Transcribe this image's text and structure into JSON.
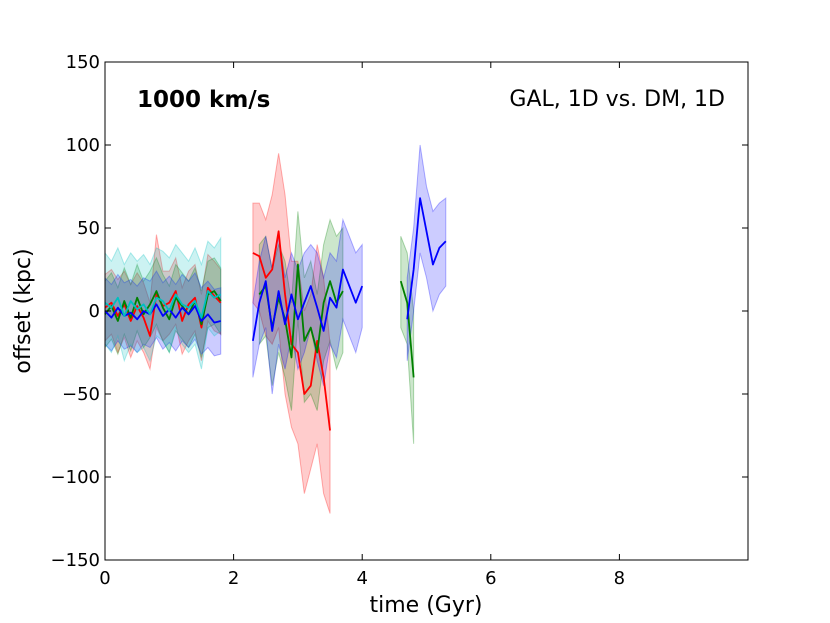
{
  "chart_data": {
    "type": "line",
    "title": "",
    "xlabel": "time (Gyr)",
    "ylabel": "offset (kpc)",
    "xlim": [
      0,
      10
    ],
    "ylim": [
      -150,
      150
    ],
    "x_ticks": [
      0,
      2,
      4,
      6,
      8
    ],
    "x_tick_labels": [
      "0",
      "2",
      "4",
      "6",
      "8"
    ],
    "y_ticks": [
      -150,
      -100,
      -50,
      0,
      50,
      100,
      150
    ],
    "y_tick_labels": [
      "−150",
      "−100",
      "−50",
      "0",
      "50",
      "100",
      "150"
    ],
    "grid": false,
    "annotations": {
      "velocity": "1000 km/s",
      "comparison": "GAL, 1D vs. DM, 1D"
    },
    "series": [
      {
        "color": "#ff0000",
        "band_color": "#ff0000",
        "segments": [
          {
            "x": [
              0,
              0.1,
              0.2,
              0.3,
              0.4,
              0.5,
              0.6,
              0.7,
              0.8,
              0.9,
              1.0,
              1.1,
              1.2,
              1.3,
              1.4,
              1.5,
              1.6,
              1.7,
              1.8
            ],
            "y": [
              2,
              5,
              -3,
              4,
              -6,
              3,
              -4,
              -15,
              10,
              3,
              5,
              12,
              -6,
              4,
              8,
              -10,
              14,
              9,
              5
            ],
            "lower": [
              -18,
              -14,
              -25,
              -16,
              -28,
              -18,
              -25,
              -35,
              -10,
              -18,
              -14,
              -8,
              -26,
              -18,
              -12,
              -30,
              -6,
              -12,
              -14
            ],
            "upper": [
              22,
              25,
              19,
              24,
              16,
              23,
              17,
              5,
              46,
              24,
              24,
              32,
              14,
              24,
              28,
              10,
              34,
              30,
              25
            ]
          },
          {
            "x": [
              2.3,
              2.4,
              2.5,
              2.6,
              2.7,
              2.8,
              2.9,
              3.0,
              3.1,
              3.2,
              3.3,
              3.4,
              3.5
            ],
            "y": [
              35,
              33,
              20,
              25,
              48,
              10,
              -20,
              -25,
              -50,
              -45,
              -18,
              -40,
              -72
            ],
            "lower": [
              5,
              0,
              -15,
              -20,
              -10,
              -50,
              -70,
              -80,
              -110,
              -95,
              -80,
              -110,
              -122
            ],
            "upper": [
              65,
              65,
              55,
              70,
              95,
              70,
              30,
              30,
              0,
              10,
              40,
              20,
              -20
            ]
          }
        ]
      },
      {
        "color": "#008000",
        "band_color": "#008000",
        "segments": [
          {
            "x": [
              0,
              0.1,
              0.2,
              0.3,
              0.4,
              0.5,
              0.6,
              0.7,
              0.8,
              0.9,
              1.0,
              1.1,
              1.2,
              1.3,
              1.4,
              1.5,
              1.6,
              1.7,
              1.8
            ],
            "y": [
              -2,
              3,
              -6,
              6,
              -4,
              8,
              -2,
              4,
              12,
              2,
              -5,
              8,
              3,
              -2,
              6,
              -8,
              10,
              12,
              6
            ],
            "lower": [
              -22,
              -17,
              -26,
              -14,
              -24,
              -12,
              -22,
              -16,
              -8,
              -18,
              -25,
              -12,
              -17,
              -22,
              -14,
              -28,
              -10,
              -8,
              -14
            ],
            "upper": [
              18,
              23,
              14,
              26,
              16,
              28,
              18,
              24,
              32,
              22,
              15,
              28,
              23,
              18,
              26,
              12,
              30,
              32,
              26
            ]
          },
          {
            "x": [
              2.4,
              2.5,
              2.6,
              2.7,
              2.8,
              2.9,
              3.0,
              3.1,
              3.2,
              3.3,
              3.4,
              3.5,
              3.6,
              3.7
            ],
            "y": [
              10,
              15,
              -10,
              8,
              -5,
              -28,
              28,
              -18,
              -10,
              -25,
              5,
              18,
              5,
              12
            ],
            "lower": [
              -20,
              -15,
              -45,
              -25,
              -40,
              -60,
              -5,
              -55,
              -50,
              -60,
              -30,
              -18,
              -35,
              -25
            ],
            "upper": [
              40,
              45,
              25,
              40,
              30,
              5,
              60,
              20,
              30,
              10,
              40,
              55,
              45,
              50
            ]
          },
          {
            "x": [
              4.6,
              4.7,
              4.8
            ],
            "y": [
              18,
              5,
              -40
            ],
            "lower": [
              -10,
              -20,
              -80
            ],
            "upper": [
              45,
              35,
              0
            ]
          }
        ]
      },
      {
        "color": "#0000ff",
        "band_color": "#0000ff",
        "segments": [
          {
            "x": [
              0,
              0.1,
              0.2,
              0.3,
              0.4,
              0.5,
              0.6,
              0.7,
              0.8,
              0.9,
              1.0,
              1.1,
              1.2,
              1.3,
              1.4,
              1.5,
              1.6,
              1.7,
              1.8
            ],
            "y": [
              0,
              -4,
              2,
              -3,
              -1,
              -5,
              0,
              -2,
              4,
              -3,
              1,
              -4,
              2,
              -2,
              3,
              -6,
              -2,
              -7,
              -6
            ],
            "lower": [
              -20,
              -24,
              -18,
              -23,
              -21,
              -25,
              -20,
              -22,
              -16,
              -23,
              -19,
              -24,
              -18,
              -22,
              -17,
              -26,
              -22,
              -27,
              -26
            ],
            "upper": [
              20,
              16,
              22,
              17,
              19,
              15,
              20,
              18,
              24,
              17,
              21,
              16,
              22,
              18,
              23,
              14,
              18,
              13,
              14
            ]
          },
          {
            "x": [
              2.3,
              2.4,
              2.5,
              2.6,
              2.7,
              2.8,
              2.9,
              3.0,
              3.1,
              3.2,
              3.3,
              3.4,
              3.5,
              3.6,
              3.7,
              3.8,
              3.9,
              4.0
            ],
            "y": [
              -18,
              5,
              18,
              -12,
              12,
              -8,
              10,
              -5,
              5,
              15,
              2,
              -12,
              8,
              2,
              25,
              15,
              5,
              15
            ],
            "lower": [
              -40,
              -20,
              -10,
              -50,
              -20,
              -35,
              -15,
              -35,
              -25,
              -10,
              -30,
              -45,
              -20,
              -28,
              -5,
              -15,
              -25,
              -10
            ],
            "upper": [
              5,
              30,
              45,
              25,
              45,
              20,
              35,
              25,
              35,
              40,
              35,
              20,
              35,
              30,
              55,
              45,
              35,
              40
            ]
          },
          {
            "x": [
              4.7,
              4.8,
              4.9,
              5.0,
              5.1,
              5.2,
              5.3
            ],
            "y": [
              -5,
              25,
              68,
              48,
              28,
              38,
              42
            ],
            "lower": [
              -30,
              0,
              35,
              20,
              0,
              10,
              15
            ],
            "upper": [
              20,
              50,
              100,
              75,
              60,
              65,
              68
            ]
          }
        ]
      },
      {
        "color": "#00bfbf",
        "band_color": "#00bfbf",
        "segments": [
          {
            "x": [
              0,
              0.1,
              0.2,
              0.3,
              0.4,
              0.5,
              0.6,
              0.7,
              0.8,
              0.9,
              1.0,
              1.1,
              1.2,
              1.3,
              1.4,
              1.5,
              1.6,
              1.7,
              1.8
            ],
            "y": [
              5,
              2,
              8,
              -3,
              6,
              1,
              4,
              -2,
              8,
              6,
              0,
              10,
              4,
              2,
              6,
              -4,
              12,
              8,
              10
            ],
            "lower": [
              -20,
              -25,
              -15,
              -30,
              -20,
              -25,
              -22,
              -30,
              -15,
              -18,
              -25,
              -10,
              -20,
              -25,
              -20,
              -35,
              -10,
              -15,
              -12
            ],
            "upper": [
              35,
              30,
              38,
              28,
              35,
              30,
              34,
              28,
              38,
              36,
              32,
              40,
              35,
              30,
              38,
              28,
              42,
              38,
              44
            ]
          }
        ]
      }
    ]
  }
}
